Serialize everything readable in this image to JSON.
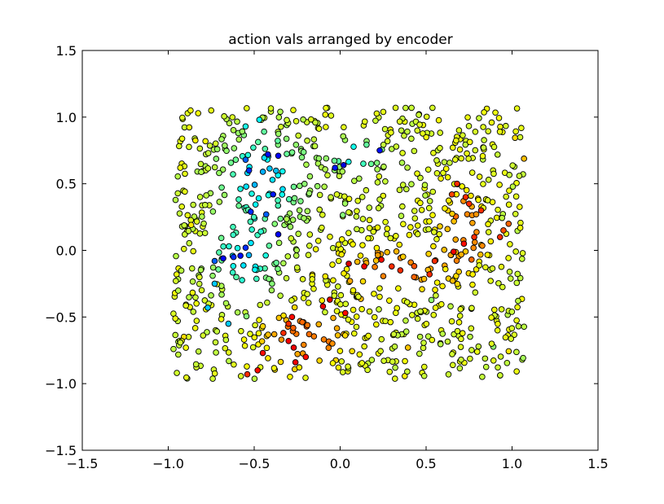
{
  "chart_data": {
    "type": "scatter",
    "title": "action vals arranged by encoder",
    "xlabel": "",
    "ylabel": "",
    "xlim": [
      -1.5,
      1.5
    ],
    "ylim": [
      -1.5,
      1.5
    ],
    "xticks": [
      "−1.5",
      "−1.0",
      "−0.5",
      "0.0",
      "0.5",
      "1.0",
      "1.5"
    ],
    "yticks": [
      "−1.5",
      "−1.0",
      "−0.5",
      "0.0",
      "0.5",
      "1.0",
      "1.5"
    ],
    "grid": false,
    "legend": "none",
    "colormap": "jet",
    "marker": "circle",
    "marker_edge_color": "#000000",
    "point_count": 1000,
    "colormap_colors": {
      "dark_blue": "#1e32c8",
      "blue": "#2e7dff",
      "cyan": "#1ed2e6",
      "aquamarine": "#6ef0b4",
      "yellow_green": "#c8ff50",
      "green_yellow": "#a5f046",
      "yellow": "#f0e628",
      "orange": "#ff9628",
      "red_orange": "#f05014"
    },
    "series": [
      {
        "values_note_x": "approximately uniform in [-0.97, 1.08]",
        "values_note_y": "approximately uniform in [-0.97, 1.07]",
        "color_range": [
          0.0,
          1.0
        ]
      }
    ],
    "sample_points": [
      [
        -0.93,
        0.62,
        0.65
      ],
      [
        -0.87,
        1.05,
        0.64
      ],
      [
        -0.75,
        1.05,
        0.63
      ],
      [
        -0.47,
        0.98,
        0.35
      ],
      [
        -0.55,
        0.93,
        0.38
      ],
      [
        -0.42,
        0.72,
        0.12
      ],
      [
        -0.36,
        0.71,
        0.1
      ],
      [
        -0.03,
        0.62,
        0.13
      ],
      [
        0.02,
        0.64,
        0.08
      ],
      [
        0.23,
        0.75,
        0.12
      ],
      [
        -0.55,
        0.68,
        0.2
      ],
      [
        -0.53,
        0.6,
        0.15
      ],
      [
        -0.39,
        0.42,
        0.13
      ],
      [
        -0.52,
        0.29,
        0.15
      ],
      [
        -0.43,
        0.27,
        0.2
      ],
      [
        -0.36,
        0.12,
        0.1
      ],
      [
        -0.55,
        0.02,
        0.15
      ],
      [
        -0.58,
        -0.04,
        0.12
      ],
      [
        -0.62,
        -0.05,
        0.15
      ],
      [
        -0.68,
        -0.06,
        0.1
      ],
      [
        -0.73,
        -0.08,
        0.2
      ],
      [
        -0.73,
        -0.25,
        0.3
      ],
      [
        -0.77,
        -0.43,
        0.3
      ],
      [
        -0.65,
        -0.55,
        0.3
      ],
      [
        -0.28,
        -0.5,
        0.88
      ],
      [
        -0.3,
        -0.55,
        0.85
      ],
      [
        -0.33,
        -0.62,
        0.85
      ],
      [
        -0.3,
        -0.68,
        0.9
      ],
      [
        -0.27,
        -0.73,
        0.9
      ],
      [
        -0.2,
        -0.8,
        0.88
      ],
      [
        -0.26,
        -0.84,
        0.9
      ],
      [
        -0.48,
        -0.9,
        0.88
      ],
      [
        -0.54,
        -0.93,
        0.85
      ],
      [
        -0.45,
        -0.77,
        0.88
      ],
      [
        -0.1,
        -0.42,
        0.9
      ],
      [
        -0.06,
        -0.37,
        0.92
      ],
      [
        0.03,
        -0.47,
        0.88
      ],
      [
        0.05,
        -0.1,
        0.92
      ],
      [
        0.14,
        -0.12,
        0.9
      ],
      [
        0.24,
        -0.07,
        0.88
      ],
      [
        0.3,
        -0.12,
        0.85
      ],
      [
        0.35,
        -0.15,
        0.85
      ],
      [
        0.43,
        -0.2,
        0.8
      ],
      [
        0.52,
        -0.18,
        0.85
      ],
      [
        0.55,
        -0.08,
        0.85
      ],
      [
        0.66,
        -0.01,
        0.9
      ],
      [
        0.72,
        0.05,
        0.88
      ],
      [
        0.78,
        0.1,
        0.85
      ],
      [
        0.82,
        0.3,
        0.85
      ],
      [
        0.75,
        0.35,
        0.85
      ],
      [
        0.65,
        0.42,
        0.83
      ],
      [
        0.68,
        0.5,
        0.85
      ],
      [
        0.73,
        0.4,
        0.85
      ],
      [
        0.93,
        0.1,
        0.85
      ],
      [
        0.95,
        0.15,
        0.82
      ],
      [
        0.98,
        0.2,
        0.8
      ]
    ]
  }
}
